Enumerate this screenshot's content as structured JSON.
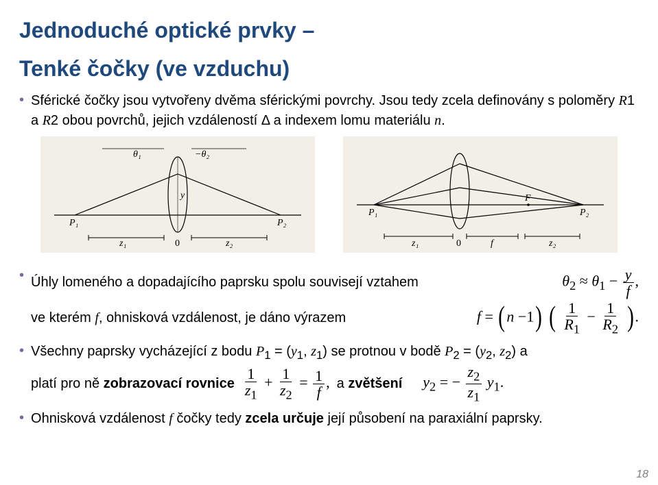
{
  "title_main": "Jednoduché optické prvky –",
  "title_sub": "Tenké čočky (ve vzduchu)",
  "bullets_top": [
    "Sférické čočky jsou vytvořeny dvěma sférickými povrchy. Jsou tedy zcela definovány s poloměry <i>R</i>1 a <i>R</i>2 obou povrchů, jejich vzdáleností Δ  a indexem lomu materiálu <i>n</i>."
  ],
  "b2_line1_text": "Úhly lomeného a dopadajícího paprsku spolu souvisejí vztahem",
  "b2_line2_text": "ve kterém <i>f</i>, ohnisková vzdálenost, je dáno výrazem",
  "b3_html": "Všechny paprsky vycházející z bodu <i>P</i><sub>1</sub> = (<i>y</i><sub>1</sub>, <i>z</i><sub>1</sub>) se protnou v bodě <i>P</i><sub>2</sub> = (<i>y</i><sub>2</sub>, <i>z</i><sub>2</sub>) a",
  "b3_line2_a": "platí pro ně <b>zobrazovací rovnice</b>",
  "b3_line2_b": "a <b>zvětšení</b>",
  "b4": "Ohnisková vzdálenost <i>f</i> čočky tedy <b>zcela určuje</b> její působení na paraxiální paprsky.",
  "fig1": {
    "bg": "#f2f0e6",
    "axis_color": "#000000",
    "labels": {
      "P1": "P₁",
      "P2": "P₂",
      "th1": "θ₁",
      "th2": "−θ₂",
      "y": "y",
      "z1": "z₁",
      "z2": "z₂",
      "zero": "0"
    }
  },
  "fig2": {
    "bg": "#f2f0e6",
    "axis_color": "#000000",
    "labels": {
      "P1": "P₁",
      "P2": "P₂",
      "F": "F",
      "f": "f",
      "z1": "z₁",
      "z2": "z₂",
      "zero": "0"
    }
  },
  "formula1": {
    "th2": "θ",
    "sub2": "2",
    "approx": "≈",
    "th1": "θ",
    "sub1": "1",
    "minus": "−",
    "y": "y",
    "f": "f",
    "comma": ","
  },
  "formula2": {
    "f": "f",
    "eq": "=",
    "lp": "(",
    "n": "n",
    "minus": "−",
    "one": "1",
    "rp": ")",
    "frac1n": "1",
    "frac1d": "R",
    "frac1ds": "1",
    "frac2n": "1",
    "frac2d": "R",
    "frac2ds": "2",
    "period": "."
  },
  "formula3": {
    "n1": "1",
    "d1": "z",
    "d1s": "1",
    "plus": "+",
    "n2": "1",
    "d2": "z",
    "d2s": "2",
    "eq": "=",
    "n3": "1",
    "d3": "f",
    "comma": ","
  },
  "formula4": {
    "y2": "y",
    "ys2": "2",
    "eq": "=",
    "minus": "−",
    "n": "z",
    "ns": "2",
    "d": "z",
    "ds": "1",
    "y1": "y",
    "ys1": "1",
    "period": "."
  },
  "pagenum": "18",
  "colors": {
    "heading": "#1f497d",
    "bullet": "#8064a2",
    "text": "#000000",
    "pagenum": "#7f7f7f"
  }
}
